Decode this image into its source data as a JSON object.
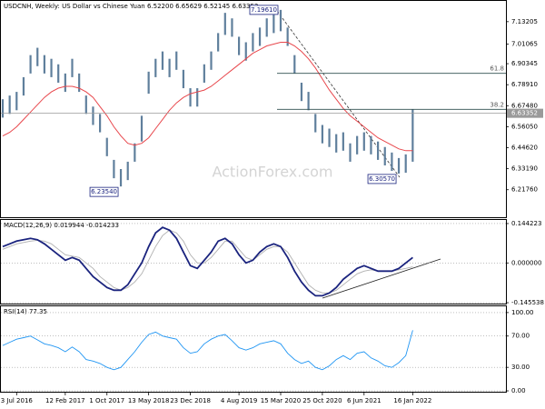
{
  "chart_data": [
    {
      "type": "ohlc",
      "title": "USDCNH, Weekly: US Dollar vs Chinese Yuan  6.52200 6.65629 6.52145 6.63352",
      "watermark": "ActionForex.com",
      "categories": [
        null,
        null,
        "3 Jul 2016",
        null,
        null,
        null,
        null,
        null,
        null,
        "12 Feb 2017",
        null,
        null,
        null,
        null,
        null,
        "1 Oct 2017",
        null,
        null,
        null,
        null,
        null,
        "13 May 2018",
        null,
        null,
        null,
        null,
        null,
        "23 Dec 2018",
        null,
        null,
        null,
        null,
        null,
        null,
        "4 Aug 2019",
        null,
        null,
        null,
        null,
        null,
        "15 Mar 2020",
        null,
        null,
        null,
        null,
        null,
        "25 Oct 2020",
        null,
        null,
        null,
        null,
        null,
        "6 Jun 2021",
        null,
        null,
        null,
        null,
        null,
        null,
        "16 Jan 2022"
      ],
      "high": [
        6.71,
        6.73,
        6.75,
        6.83,
        6.95,
        6.99,
        6.95,
        6.93,
        6.9,
        6.85,
        6.93,
        6.85,
        6.73,
        6.67,
        6.63,
        6.5,
        6.38,
        6.33,
        6.37,
        6.47,
        6.62,
        6.86,
        6.93,
        6.97,
        6.93,
        6.97,
        6.87,
        6.77,
        6.77,
        6.9,
        6.97,
        7.07,
        7.18,
        7.15,
        7.05,
        7.02,
        7.07,
        7.1,
        7.15,
        7.17,
        7.1961,
        7.1,
        6.95,
        6.8,
        6.75,
        6.63,
        6.57,
        6.55,
        6.52,
        6.53,
        6.47,
        6.51,
        6.53,
        6.51,
        6.48,
        6.45,
        6.42,
        6.39,
        6.41,
        6.65629
      ],
      "low": [
        6.61,
        6.63,
        6.65,
        6.73,
        6.85,
        6.89,
        6.85,
        6.83,
        6.8,
        6.75,
        6.83,
        6.75,
        6.63,
        6.57,
        6.53,
        6.4,
        6.28,
        6.2354,
        6.27,
        6.37,
        6.48,
        6.74,
        6.83,
        6.87,
        6.83,
        6.87,
        6.77,
        6.67,
        6.67,
        6.8,
        6.87,
        6.97,
        7.06,
        7.05,
        6.95,
        6.92,
        6.97,
        7.0,
        7.05,
        7.07,
        7.08,
        7.0,
        6.85,
        6.7,
        6.65,
        6.53,
        6.47,
        6.45,
        6.42,
        6.43,
        6.37,
        6.41,
        6.43,
        6.41,
        6.38,
        6.35,
        6.32,
        6.3057,
        6.31,
        6.37
      ],
      "color": "#5f7f9c",
      "ma": {
        "color": "#e8474c",
        "values": [
          6.51,
          6.53,
          6.56,
          6.6,
          6.64,
          6.68,
          6.72,
          6.75,
          6.77,
          6.78,
          6.78,
          6.77,
          6.75,
          6.72,
          6.67,
          6.62,
          6.56,
          6.51,
          6.47,
          6.46,
          6.47,
          6.5,
          6.55,
          6.6,
          6.65,
          6.69,
          6.72,
          6.74,
          6.75,
          6.76,
          6.78,
          6.81,
          6.84,
          6.87,
          6.9,
          6.93,
          6.96,
          6.98,
          7.0,
          7.01,
          7.02,
          7.02,
          7.0,
          6.97,
          6.93,
          6.88,
          6.82,
          6.76,
          6.71,
          6.66,
          6.62,
          6.59,
          6.56,
          6.53,
          6.5,
          6.48,
          6.46,
          6.44,
          6.43,
          6.43
        ]
      },
      "ylim": [
        6.063,
        7.245
      ],
      "yticks": [
        7.13205,
        7.01065,
        6.90345,
        {
          "value": 6.7891,
          "label": "6.78910"
        },
        {
          "value": 6.6748,
          "label": "6.67480"
        },
        {
          "value": 6.5605,
          "label": "6.56050"
        },
        {
          "value": 6.4462,
          "label": "6.44620"
        },
        {
          "value": 6.3319,
          "label": "6.33190"
        },
        {
          "value": 6.2176,
          "label": "6.21760"
        }
      ],
      "current_price": 6.63352,
      "fib_levels": [
        {
          "label": "61.8",
          "value": 6.851
        },
        {
          "label": "38.2",
          "value": 6.655
        }
      ],
      "price_labels": [
        {
          "value": 7.1961,
          "label": "7.19610"
        },
        {
          "value": 6.2354,
          "label": "6.23540"
        },
        {
          "value": 6.3057,
          "label": "6.30570"
        }
      ]
    },
    {
      "type": "line",
      "title": "MACD(12,26,9) 0.019944 -0.014233",
      "series": [
        {
          "color": "#1a237e",
          "values": [
            0.06,
            0.07,
            0.08,
            0.085,
            0.09,
            0.085,
            0.07,
            0.05,
            0.03,
            0.01,
            0.02,
            0.01,
            -0.02,
            -0.05,
            -0.07,
            -0.09,
            -0.1,
            -0.1,
            -0.08,
            -0.04,
            0.0,
            0.06,
            0.11,
            0.13,
            0.12,
            0.09,
            0.04,
            -0.01,
            -0.02,
            0.01,
            0.04,
            0.08,
            0.09,
            0.07,
            0.03,
            0.0,
            0.01,
            0.04,
            0.06,
            0.07,
            0.06,
            0.02,
            -0.03,
            -0.07,
            -0.1,
            -0.12,
            -0.12,
            -0.11,
            -0.09,
            -0.06,
            -0.04,
            -0.02,
            -0.01,
            -0.02,
            -0.03,
            -0.03,
            -0.03,
            -0.02,
            0.0,
            0.019944
          ]
        },
        {
          "color": "#b0b0b0",
          "values": [
            0.05,
            0.06,
            0.07,
            0.075,
            0.08,
            0.083,
            0.08,
            0.07,
            0.05,
            0.03,
            0.025,
            0.02,
            0.0,
            -0.02,
            -0.05,
            -0.07,
            -0.09,
            -0.1,
            -0.09,
            -0.07,
            -0.04,
            0.01,
            0.06,
            0.1,
            0.12,
            0.11,
            0.08,
            0.03,
            0.0,
            0.0,
            0.02,
            0.05,
            0.08,
            0.08,
            0.05,
            0.02,
            0.01,
            0.03,
            0.05,
            0.06,
            0.06,
            0.04,
            0.0,
            -0.04,
            -0.08,
            -0.1,
            -0.11,
            -0.11,
            -0.1,
            -0.08,
            -0.06,
            -0.04,
            -0.03,
            -0.025,
            -0.03,
            -0.03,
            -0.03,
            -0.025,
            -0.02,
            -0.014233
          ]
        }
      ],
      "ylim": [
        -0.1521,
        0.1574
      ],
      "yticks": [
        0.144223,
        {
          "value": 0,
          "label": "0.000000"
        },
        -0.145538
      ]
    },
    {
      "type": "line",
      "title": "RSI(14) 77.35",
      "series": [
        {
          "color": "#2196f3",
          "values": [
            58,
            62,
            66,
            68,
            70,
            65,
            60,
            58,
            55,
            50,
            56,
            50,
            40,
            38,
            35,
            30,
            27,
            30,
            40,
            50,
            62,
            72,
            75,
            70,
            68,
            66,
            55,
            48,
            50,
            60,
            66,
            70,
            72,
            64,
            55,
            52,
            55,
            60,
            62,
            64,
            60,
            48,
            40,
            35,
            38,
            30,
            27,
            32,
            40,
            45,
            40,
            48,
            50,
            42,
            38,
            32,
            30,
            36,
            45,
            77.35
          ]
        }
      ],
      "ylim": [
        -2.3,
        108
      ],
      "yticks": [
        {
          "value": 100,
          "label": "100.00"
        },
        {
          "value": 70,
          "label": "70.00"
        },
        {
          "value": 30,
          "label": "30.00"
        },
        {
          "value": 0,
          "label": "0.00"
        }
      ]
    }
  ]
}
